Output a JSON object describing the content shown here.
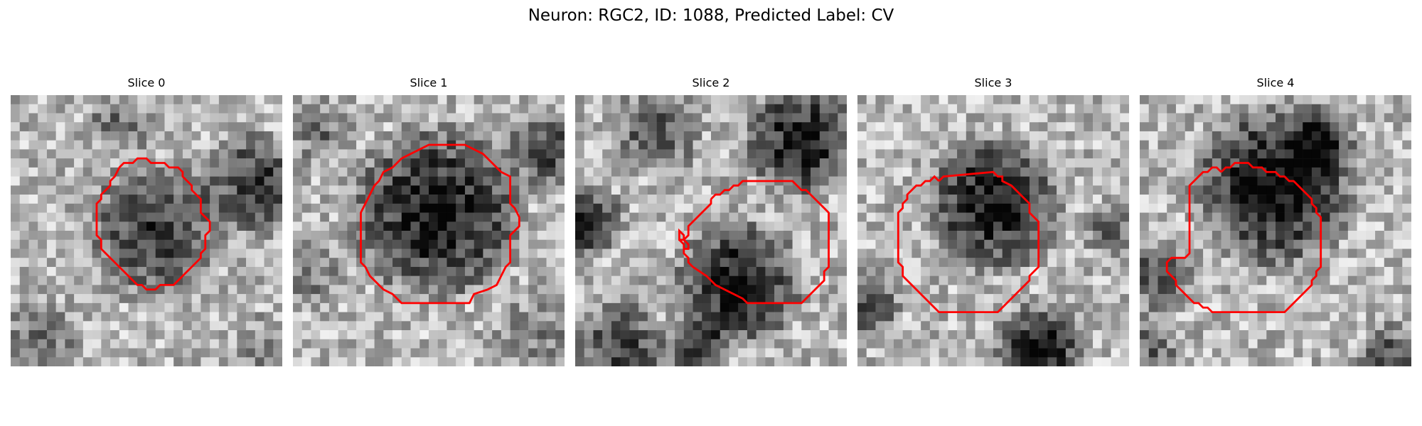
{
  "figure": {
    "title": "Neuron: RGC2, ID: 1088, Predicted Label: CV",
    "contour_color": "#ff0000",
    "colormap": "grayscale",
    "grid_size": 30
  },
  "panels": [
    {
      "title": "Slice 0",
      "contour_label": "cell-outline"
    },
    {
      "title": "Slice 1",
      "contour_label": "cell-outline"
    },
    {
      "title": "Slice 2",
      "contour_label": "cell-outline"
    },
    {
      "title": "Slice 3",
      "contour_label": "cell-outline"
    },
    {
      "title": "Slice 4",
      "contour_label": "cell-outline"
    }
  ]
}
